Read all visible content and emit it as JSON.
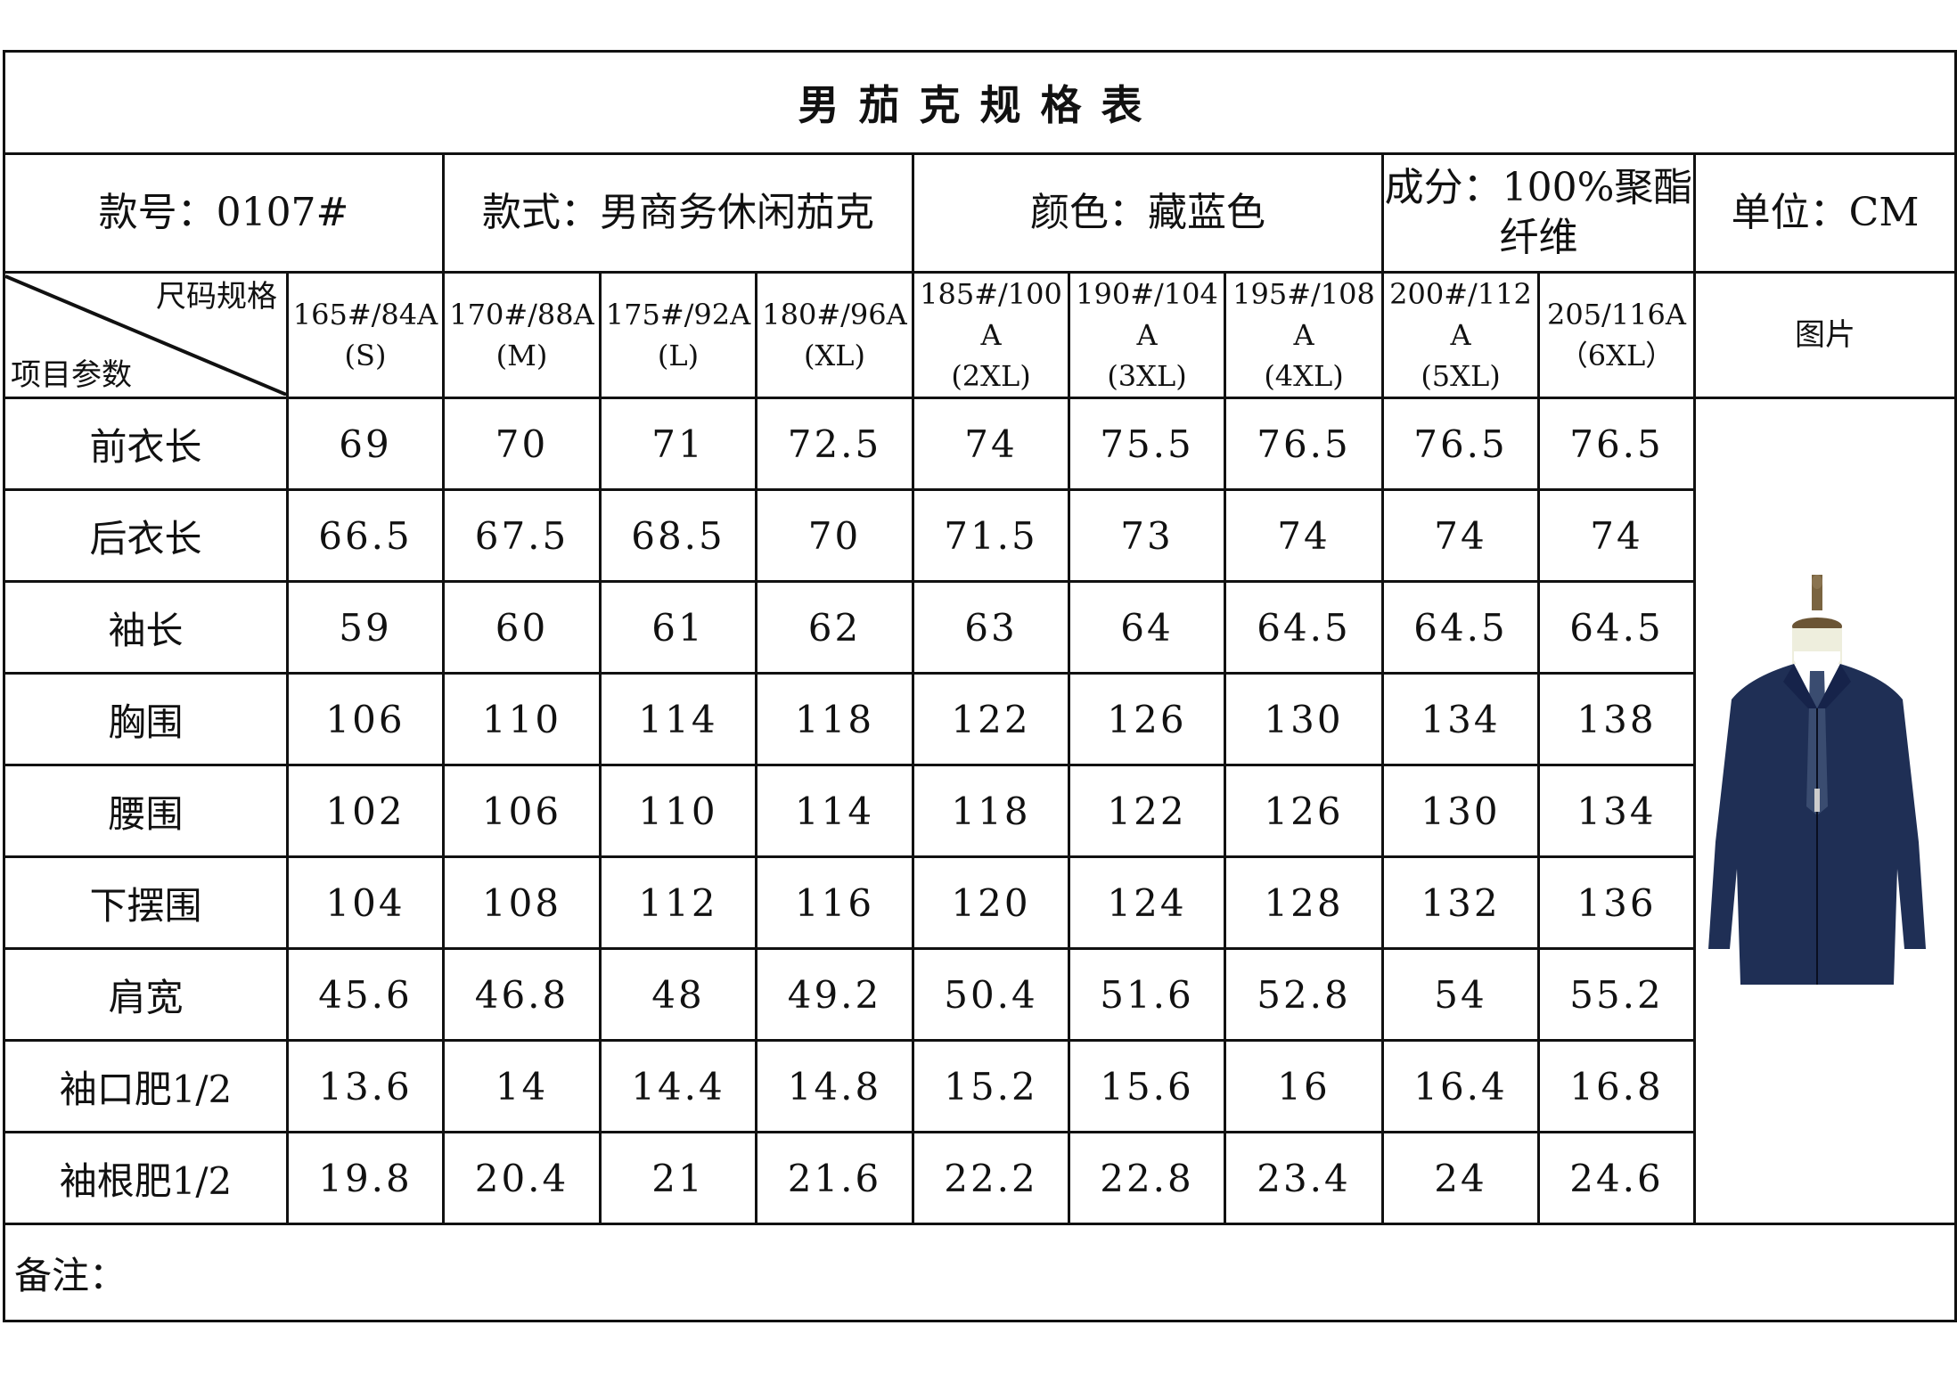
{
  "title": "男茄克规格表",
  "info": {
    "style_no": "款号：0107#",
    "style": "款式：男商务休闲茄克",
    "color": "颜色：藏蓝色",
    "composition_line1": "成分：100%聚酯",
    "composition_line2": "纤维",
    "unit": "单位：CM"
  },
  "corner": {
    "top_right": "尺码规格",
    "bottom_left": "项目参数"
  },
  "sizes": [
    {
      "l1": "165#/84A",
      "l2": "(S)",
      "l3": ""
    },
    {
      "l1": "170#/88A",
      "l2": "(M)",
      "l3": ""
    },
    {
      "l1": "175#/92A",
      "l2": "(L)",
      "l3": ""
    },
    {
      "l1": "180#/96A",
      "l2": "(XL)",
      "l3": ""
    },
    {
      "l1": "185#/100",
      "l2": "A",
      "l3": "(2XL)"
    },
    {
      "l1": "190#/104",
      "l2": "A",
      "l3": "(3XL)"
    },
    {
      "l1": "195#/108",
      "l2": "A",
      "l3": "(4XL)"
    },
    {
      "l1": "200#/112",
      "l2": "A",
      "l3": "(5XL)"
    },
    {
      "l1": "205/116A",
      "l2": "（6XL）",
      "l3": ""
    }
  ],
  "picture_label": "图片",
  "rows": [
    {
      "label": "前衣长",
      "values": [
        "69",
        "70",
        "71",
        "72.5",
        "74",
        "75.5",
        "76.5",
        "76.5",
        "76.5"
      ]
    },
    {
      "label": "后衣长",
      "values": [
        "66.5",
        "67.5",
        "68.5",
        "70",
        "71.5",
        "73",
        "74",
        "74",
        "74"
      ]
    },
    {
      "label": "袖长",
      "values": [
        "59",
        "60",
        "61",
        "62",
        "63",
        "64",
        "64.5",
        "64.5",
        "64.5"
      ]
    },
    {
      "label": "胸围",
      "values": [
        "106",
        "110",
        "114",
        "118",
        "122",
        "126",
        "130",
        "134",
        "138"
      ]
    },
    {
      "label": "腰围",
      "values": [
        "102",
        "106",
        "110",
        "114",
        "118",
        "122",
        "126",
        "130",
        "134"
      ]
    },
    {
      "label": "下摆围",
      "values": [
        "104",
        "108",
        "112",
        "116",
        "120",
        "124",
        "128",
        "132",
        "136"
      ]
    },
    {
      "label": "肩宽",
      "values": [
        "45.6",
        "46.8",
        "48",
        "49.2",
        "50.4",
        "51.6",
        "52.8",
        "54",
        "55.2"
      ]
    },
    {
      "label": "袖口肥1/2",
      "values": [
        "13.6",
        "14",
        "14.4",
        "14.8",
        "15.2",
        "15.6",
        "16",
        "16.4",
        "16.8"
      ]
    },
    {
      "label": "袖根肥1/2",
      "values": [
        "19.8",
        "20.4",
        "21",
        "21.6",
        "22.2",
        "22.8",
        "23.4",
        "24",
        "24.6"
      ]
    }
  ],
  "note_label": "备注：",
  "colors": {
    "jacket": "#1f2f55",
    "border": "#111111"
  }
}
